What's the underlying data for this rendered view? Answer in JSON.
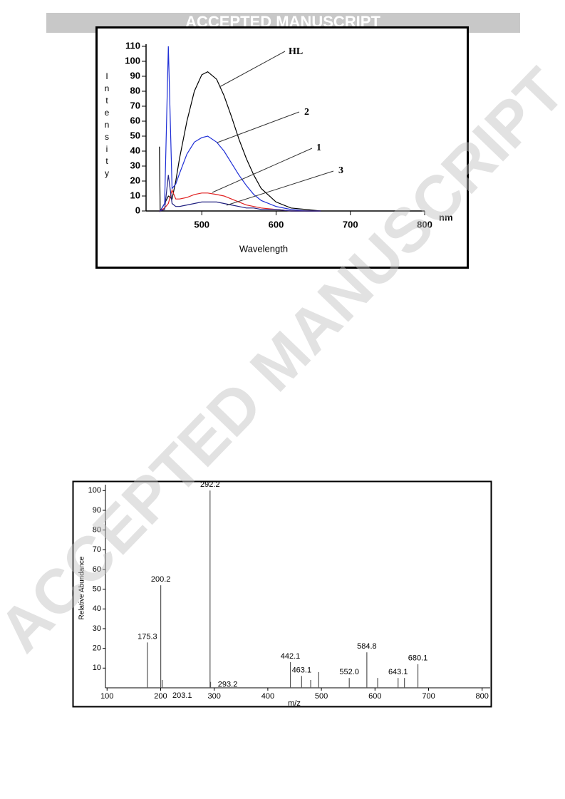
{
  "header": {
    "banner": "ACCEPTED MANUSCRIPT",
    "watermark": "ACCEPTED MANUSCRIPT"
  },
  "chart_data": [
    {
      "type": "line",
      "ylabel": "Intensity",
      "xlabel": "Wavelength",
      "xunit": "nm",
      "x": [
        443,
        444,
        450,
        455,
        460,
        465,
        470,
        480,
        490,
        500,
        508,
        520,
        530,
        540,
        550,
        560,
        570,
        580,
        600,
        620,
        640,
        660
      ],
      "series": [
        {
          "name": "HL",
          "color": "#000000",
          "values": [
            43,
            0,
            5,
            10,
            8,
            20,
            35,
            60,
            80,
            91,
            93,
            88,
            77,
            63,
            48,
            35,
            24,
            15,
            6,
            2,
            1,
            0
          ]
        },
        {
          "name": "2",
          "color": "#1f2fd6",
          "values": [
            0,
            0,
            5,
            110,
            15,
            18,
            25,
            38,
            46,
            49,
            50,
            46,
            40,
            32,
            24,
            17,
            11,
            7,
            3,
            1,
            0,
            0
          ]
        },
        {
          "name": "1",
          "color": "#e02020",
          "values": [
            0,
            0,
            2,
            5,
            14,
            8,
            8,
            9,
            11,
            12,
            12,
            11,
            10,
            8,
            6,
            4,
            3,
            2,
            1,
            0,
            0,
            0
          ]
        },
        {
          "name": "3",
          "color": "#202080",
          "values": [
            0,
            0,
            1,
            24,
            5,
            3,
            3,
            4,
            5,
            6,
            6,
            6,
            5,
            4,
            3,
            2,
            2,
            1,
            1,
            0,
            0,
            0
          ]
        }
      ],
      "xlim": [
        425,
        800
      ],
      "xticks": [
        500,
        600,
        700,
        800
      ],
      "ylim": [
        0,
        110
      ],
      "yticks": [
        0,
        10,
        20,
        30,
        40,
        50,
        60,
        70,
        80,
        90,
        100,
        110
      ]
    },
    {
      "type": "stem",
      "ylabel": "Relative Abundance",
      "xlabel": "m/z",
      "x": [
        175.3,
        200.2,
        203.1,
        292.2,
        293.2,
        442.1,
        463.1,
        480,
        495,
        552.0,
        584.8,
        605,
        643.1,
        655,
        680.1
      ],
      "values": [
        23,
        52,
        4,
        100,
        3,
        13,
        6,
        4,
        8,
        5,
        18,
        5,
        5,
        5,
        12
      ],
      "peak_labels": [
        "175.3",
        "200.2",
        "203.1",
        "292.2",
        "293.2",
        "442.1",
        "463.1",
        null,
        null,
        "552.0",
        "584.8",
        null,
        "643.1",
        null,
        "680.1"
      ],
      "color": "#555555",
      "xlim": [
        97,
        815
      ],
      "xticks": [
        100,
        200,
        300,
        400,
        500,
        600,
        700,
        800
      ],
      "ylim": [
        0,
        103
      ],
      "yticks": [
        10,
        20,
        30,
        40,
        50,
        60,
        70,
        80,
        90,
        100
      ]
    }
  ]
}
